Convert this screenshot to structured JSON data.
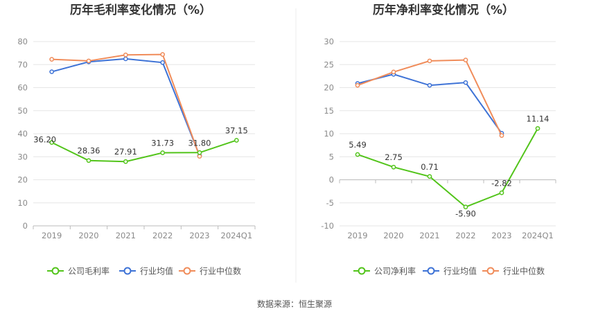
{
  "source_note": "数据来源：恒生聚源",
  "chart_data": [
    {
      "type": "line",
      "title": "历年毛利率变化情况（%）",
      "categories": [
        "2019",
        "2020",
        "2021",
        "2022",
        "2023",
        "2024Q1"
      ],
      "ylim": [
        0,
        80
      ],
      "yticks": [
        0,
        10,
        20,
        30,
        40,
        50,
        60,
        70,
        80
      ],
      "grid": true,
      "legend_position": "bottom",
      "series": [
        {
          "name": "公司毛利率",
          "color": "#52c41a",
          "values": [
            36.2,
            28.36,
            27.91,
            31.73,
            31.8,
            37.15
          ],
          "labels": [
            "36.20",
            "28.36",
            "27.91",
            "31.73",
            "31.80",
            "37.15"
          ]
        },
        {
          "name": "行业均值",
          "color": "#3d72d6",
          "values": [
            66.9,
            71.2,
            72.5,
            70.9,
            30.5,
            null
          ]
        },
        {
          "name": "行业中位数",
          "color": "#f08c5a",
          "values": [
            72.3,
            71.6,
            74.2,
            74.4,
            30.2,
            null
          ]
        }
      ]
    },
    {
      "type": "line",
      "title": "历年净利率变化情况（%）",
      "categories": [
        "2019",
        "2020",
        "2021",
        "2022",
        "2023",
        "2024Q1"
      ],
      "ylim": [
        -10,
        30
      ],
      "yticks": [
        -10,
        -5,
        0,
        5,
        10,
        15,
        20,
        25,
        30
      ],
      "grid": true,
      "legend_position": "bottom",
      "series": [
        {
          "name": "公司净利率",
          "color": "#52c41a",
          "values": [
            5.49,
            2.75,
            0.71,
            -5.9,
            -2.82,
            11.14
          ],
          "labels": [
            "5.49",
            "2.75",
            "0.71",
            "-5.90",
            "-2.82",
            "11.14"
          ]
        },
        {
          "name": "行业均值",
          "color": "#3d72d6",
          "values": [
            20.9,
            22.9,
            20.5,
            21.1,
            10.1,
            null
          ]
        },
        {
          "name": "行业中位数",
          "color": "#f08c5a",
          "values": [
            20.5,
            23.4,
            25.8,
            26.0,
            9.6,
            null
          ]
        }
      ]
    }
  ]
}
